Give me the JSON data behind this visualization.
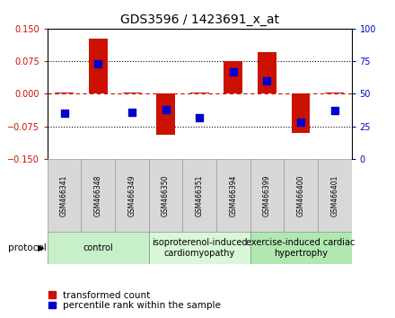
{
  "title": "GDS3596 / 1423691_x_at",
  "samples": [
    "GSM466341",
    "GSM466348",
    "GSM466349",
    "GSM466350",
    "GSM466351",
    "GSM466394",
    "GSM466399",
    "GSM466400",
    "GSM466401"
  ],
  "red_bars": [
    0.002,
    0.128,
    0.002,
    -0.095,
    0.002,
    0.076,
    0.095,
    -0.09,
    0.002
  ],
  "blue_dots": [
    35,
    73,
    36,
    38,
    32,
    67,
    60,
    28,
    37
  ],
  "ylim_left": [
    -0.15,
    0.15
  ],
  "ylim_right": [
    0,
    100
  ],
  "yticks_left": [
    -0.15,
    -0.075,
    0,
    0.075,
    0.15
  ],
  "yticks_right": [
    0,
    25,
    50,
    75,
    100
  ],
  "groups": [
    {
      "label": "control",
      "start": 0,
      "end": 3,
      "color": "#c8f0c8"
    },
    {
      "label": "isoproterenol-induced\ncardiomyopathy",
      "start": 3,
      "end": 6,
      "color": "#d8f8d8"
    },
    {
      "label": "exercise-induced cardiac\nhypertrophy",
      "start": 6,
      "end": 9,
      "color": "#b0e8b0"
    }
  ],
  "red_color": "#cc1100",
  "blue_color": "#0000cc",
  "bar_width": 0.55,
  "dot_size": 28,
  "title_fontsize": 10,
  "tick_fontsize": 7,
  "sample_fontsize": 5.5,
  "group_label_fontsize": 7,
  "legend_fontsize": 7.5,
  "protocol_label": "protocol",
  "legend_items": [
    "transformed count",
    "percentile rank within the sample"
  ]
}
